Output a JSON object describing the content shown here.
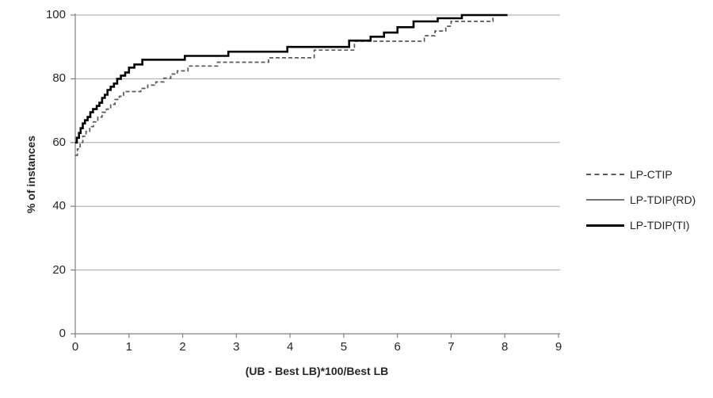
{
  "chart_data": {
    "type": "line",
    "line_style": "step-after",
    "title": "",
    "xlabel": "(UB - Best LB)*100/Best LB",
    "ylabel": "% of instances",
    "xlim": [
      0,
      9
    ],
    "ylim": [
      0,
      100
    ],
    "x_ticks": [
      0,
      1,
      2,
      3,
      4,
      5,
      6,
      7,
      8,
      9
    ],
    "y_ticks": [
      0,
      20,
      40,
      60,
      80,
      100
    ],
    "grid": "horizontal-only",
    "legend_position": "right-middle",
    "colors": {
      "grid": "#a6a6a6",
      "axis": "#808080",
      "text": "#262626",
      "background": "#ffffff"
    },
    "draw_order": [
      1,
      0,
      2
    ],
    "series": [
      {
        "name": "LP-CTIP",
        "style": "dashed",
        "color": "#595959",
        "width": 1.7,
        "dash": "5 3",
        "legend_sample": "2px dashed",
        "points": [
          [
            0,
            56
          ],
          [
            0.04,
            58
          ],
          [
            0.09,
            60
          ],
          [
            0.14,
            62
          ],
          [
            0.2,
            63.5
          ],
          [
            0.27,
            65
          ],
          [
            0.34,
            66.5
          ],
          [
            0.42,
            68
          ],
          [
            0.5,
            69.5
          ],
          [
            0.58,
            70.5
          ],
          [
            0.66,
            72
          ],
          [
            0.74,
            73.5
          ],
          [
            0.82,
            74.5
          ],
          [
            0.9,
            76
          ],
          [
            1.22,
            77
          ],
          [
            1.35,
            78
          ],
          [
            1.5,
            79
          ],
          [
            1.65,
            80.2
          ],
          [
            1.78,
            81.5
          ],
          [
            1.9,
            82.5
          ],
          [
            2.1,
            84
          ],
          [
            2.65,
            85.2
          ],
          [
            3.6,
            86.6
          ],
          [
            4.45,
            89
          ],
          [
            5.2,
            91.8
          ],
          [
            6.5,
            93.5
          ],
          [
            6.7,
            95
          ],
          [
            6.9,
            96.5
          ],
          [
            7.0,
            98
          ],
          [
            7.78,
            100
          ],
          [
            7.82,
            100
          ]
        ]
      },
      {
        "name": "LP-TDIP(RD)",
        "style": "solid",
        "color": "#737373",
        "width": 1.3,
        "dash": "",
        "legend_sample": "2px solid",
        "points": [
          [
            0,
            60
          ],
          [
            0.03,
            61.5
          ],
          [
            0.07,
            63
          ],
          [
            0.1,
            64.5
          ],
          [
            0.14,
            66
          ],
          [
            0.18,
            67
          ],
          [
            0.23,
            68
          ],
          [
            0.28,
            69.5
          ],
          [
            0.33,
            70.5
          ],
          [
            0.4,
            71.5
          ],
          [
            0.45,
            72.5
          ],
          [
            0.5,
            74
          ],
          [
            0.55,
            75
          ],
          [
            0.6,
            76.5
          ],
          [
            0.66,
            77.5
          ],
          [
            0.72,
            78.5
          ],
          [
            0.78,
            80
          ],
          [
            0.85,
            81
          ],
          [
            0.93,
            82
          ],
          [
            1.0,
            83.5
          ],
          [
            1.1,
            84.5
          ],
          [
            1.25,
            86
          ],
          [
            2.04,
            87.2
          ],
          [
            2.85,
            88.5
          ],
          [
            3.95,
            90
          ],
          [
            5.1,
            92
          ],
          [
            5.5,
            93.2
          ],
          [
            5.75,
            94.5
          ],
          [
            6.0,
            96.2
          ],
          [
            6.3,
            98
          ],
          [
            6.75,
            99
          ],
          [
            7.2,
            100
          ],
          [
            8.05,
            100
          ]
        ]
      },
      {
        "name": "LP-TDIP(TI)",
        "style": "solid",
        "color": "#000000",
        "width": 2.6,
        "dash": "",
        "legend_sample": "3px solid",
        "points": [
          [
            0,
            60
          ],
          [
            0.03,
            61.5
          ],
          [
            0.07,
            63
          ],
          [
            0.1,
            64.5
          ],
          [
            0.14,
            66
          ],
          [
            0.18,
            67
          ],
          [
            0.23,
            68
          ],
          [
            0.28,
            69.5
          ],
          [
            0.33,
            70.5
          ],
          [
            0.4,
            71.5
          ],
          [
            0.45,
            72.5
          ],
          [
            0.5,
            74
          ],
          [
            0.55,
            75
          ],
          [
            0.6,
            76.5
          ],
          [
            0.66,
            77.5
          ],
          [
            0.72,
            78.5
          ],
          [
            0.78,
            80
          ],
          [
            0.85,
            81
          ],
          [
            0.93,
            82
          ],
          [
            1.0,
            83.5
          ],
          [
            1.1,
            84.5
          ],
          [
            1.25,
            86
          ],
          [
            2.04,
            87.2
          ],
          [
            2.85,
            88.5
          ],
          [
            3.95,
            90
          ],
          [
            5.1,
            92
          ],
          [
            5.5,
            93.2
          ],
          [
            5.75,
            94.5
          ],
          [
            6.0,
            96.2
          ],
          [
            6.3,
            98
          ],
          [
            6.75,
            99
          ],
          [
            7.2,
            100
          ],
          [
            8.05,
            100
          ]
        ]
      }
    ]
  }
}
